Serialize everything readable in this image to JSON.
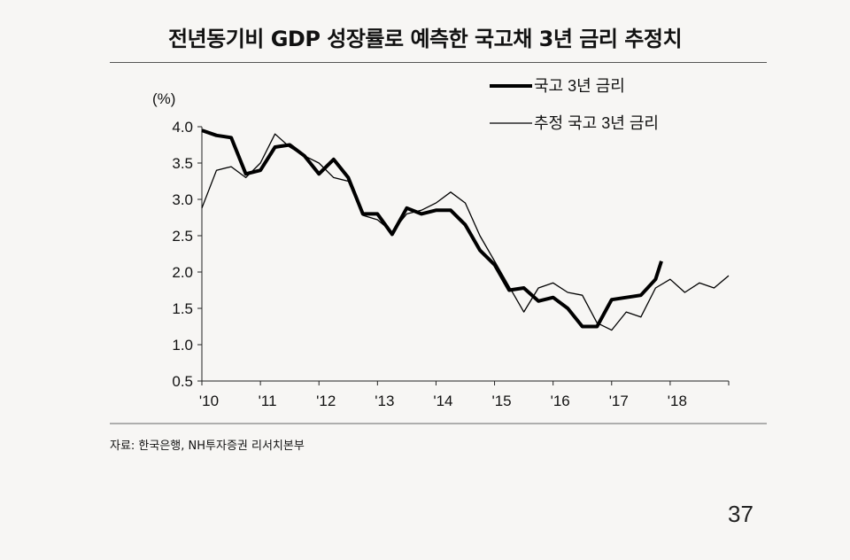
{
  "title": "전년동기비 GDP 성장률로 예측한 국고채 3년 금리 추정치",
  "source": "자료: 한국은행, NH투자증권 리서치본부",
  "page_number": "37",
  "chart_data": {
    "type": "line",
    "ylabel": "(%)",
    "ylim": [
      0.5,
      4.0
    ],
    "yticks": [
      "4.0",
      "3.5",
      "3.0",
      "2.5",
      "2.0",
      "1.5",
      "1.0",
      "0.5"
    ],
    "xticks": [
      "'10",
      "'11",
      "'12",
      "'13",
      "'14",
      "'15",
      "'16",
      "'17",
      "'18"
    ],
    "xlim": [
      2010,
      2019
    ],
    "grid": false,
    "legend": "top-right",
    "series": [
      {
        "name": "국고 3년 금리",
        "color": "#000000",
        "points": [
          [
            2010.0,
            3.95
          ],
          [
            2010.25,
            3.88
          ],
          [
            2010.5,
            3.85
          ],
          [
            2010.75,
            3.35
          ],
          [
            2011.0,
            3.4
          ],
          [
            2011.25,
            3.72
          ],
          [
            2011.5,
            3.75
          ],
          [
            2011.75,
            3.6
          ],
          [
            2012.0,
            3.35
          ],
          [
            2012.25,
            3.55
          ],
          [
            2012.5,
            3.3
          ],
          [
            2012.75,
            2.8
          ],
          [
            2013.0,
            2.8
          ],
          [
            2013.25,
            2.52
          ],
          [
            2013.5,
            2.88
          ],
          [
            2013.75,
            2.8
          ],
          [
            2014.0,
            2.85
          ],
          [
            2014.25,
            2.85
          ],
          [
            2014.5,
            2.65
          ],
          [
            2014.75,
            2.3
          ],
          [
            2015.0,
            2.1
          ],
          [
            2015.25,
            1.75
          ],
          [
            2015.5,
            1.78
          ],
          [
            2015.75,
            1.6
          ],
          [
            2016.0,
            1.65
          ],
          [
            2016.25,
            1.5
          ],
          [
            2016.5,
            1.25
          ],
          [
            2016.75,
            1.25
          ],
          [
            2017.0,
            1.62
          ],
          [
            2017.25,
            1.65
          ],
          [
            2017.5,
            1.68
          ],
          [
            2017.75,
            1.9
          ],
          [
            2017.85,
            2.15
          ]
        ]
      },
      {
        "name": "추정 국고 3년 금리",
        "color": "#000000",
        "points": [
          [
            2010.0,
            2.88
          ],
          [
            2010.25,
            3.4
          ],
          [
            2010.5,
            3.45
          ],
          [
            2010.75,
            3.3
          ],
          [
            2011.0,
            3.5
          ],
          [
            2011.25,
            3.9
          ],
          [
            2011.5,
            3.72
          ],
          [
            2011.75,
            3.6
          ],
          [
            2012.0,
            3.5
          ],
          [
            2012.25,
            3.3
          ],
          [
            2012.5,
            3.25
          ],
          [
            2012.75,
            2.78
          ],
          [
            2013.0,
            2.72
          ],
          [
            2013.25,
            2.55
          ],
          [
            2013.5,
            2.8
          ],
          [
            2013.75,
            2.85
          ],
          [
            2014.0,
            2.95
          ],
          [
            2014.25,
            3.1
          ],
          [
            2014.5,
            2.95
          ],
          [
            2014.75,
            2.5
          ],
          [
            2015.0,
            2.15
          ],
          [
            2015.25,
            1.8
          ],
          [
            2015.5,
            1.45
          ],
          [
            2015.75,
            1.78
          ],
          [
            2016.0,
            1.85
          ],
          [
            2016.25,
            1.72
          ],
          [
            2016.5,
            1.68
          ],
          [
            2016.75,
            1.3
          ],
          [
            2017.0,
            1.2
          ],
          [
            2017.25,
            1.45
          ],
          [
            2017.5,
            1.38
          ],
          [
            2017.75,
            1.78
          ],
          [
            2018.0,
            1.9
          ],
          [
            2018.25,
            1.72
          ],
          [
            2018.5,
            1.85
          ],
          [
            2018.75,
            1.78
          ],
          [
            2019.0,
            1.95
          ]
        ]
      }
    ]
  }
}
